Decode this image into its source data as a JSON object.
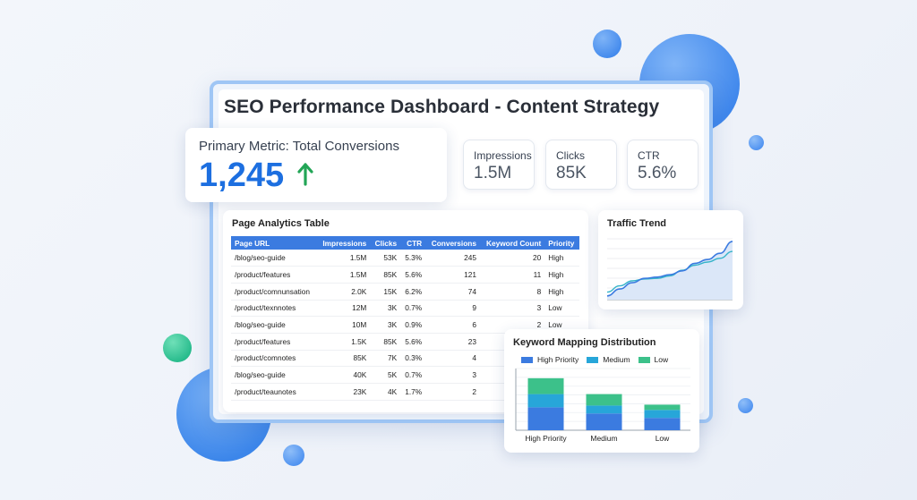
{
  "header": {
    "title": "SEO Performance Dashboard - Content Strategy"
  },
  "primary_metric": {
    "label": "Primary Metric: Total Conversions",
    "value": "1,245",
    "trend_icon": "arrow-up-icon",
    "trend_color": "#22a556"
  },
  "metrics": [
    {
      "label": "Impressions",
      "value": "1.5M"
    },
    {
      "label": "Clicks",
      "value": "85K"
    },
    {
      "label": "CTR",
      "value": "5.6%"
    }
  ],
  "page_table": {
    "title": "Page Analytics Table",
    "columns": [
      "Page URL",
      "Impressions",
      "Clicks",
      "CTR",
      "Conversions",
      "Keyword Count",
      "Priority"
    ],
    "rows": [
      [
        "/blog/seo-guide",
        "1.5M",
        "53K",
        "5.3%",
        "245",
        "20",
        "High"
      ],
      [
        "/product/features",
        "1.5M",
        "85K",
        "5.6%",
        "121",
        "11",
        "High"
      ],
      [
        "/product/comnunsation",
        "2.0K",
        "15K",
        "6.2%",
        "74",
        "8",
        "High"
      ],
      [
        "/product/texnnotes",
        "12M",
        "3K",
        "0.7%",
        "9",
        "3",
        "Low"
      ],
      [
        "/blog/seo-guide",
        "10M",
        "3K",
        "0.9%",
        "6",
        "2",
        "Low"
      ],
      [
        "/product/features",
        "1.5K",
        "85K",
        "5.6%",
        "23",
        "",
        ""
      ],
      [
        "/product/comnotes",
        "85K",
        "7K",
        "0.3%",
        "4",
        "",
        ""
      ],
      [
        "/blog/seo-guide",
        "40K",
        "5K",
        "0.7%",
        "3",
        "",
        ""
      ],
      [
        "/product/teaunotes",
        "23K",
        "4K",
        "1.7%",
        "2",
        "",
        ""
      ]
    ]
  },
  "traffic_trend": {
    "title": "Traffic Trend",
    "series_a": [
      0.06,
      0.17,
      0.27,
      0.34,
      0.36,
      0.4,
      0.46,
      0.58,
      0.64,
      0.74,
      0.93
    ],
    "series_b": [
      0.12,
      0.22,
      0.3,
      0.33,
      0.34,
      0.38,
      0.47,
      0.55,
      0.6,
      0.66,
      0.77
    ],
    "line_color_a": "#3b7be0",
    "line_color_b": "#34b3c9",
    "fill_color": "#dbe7f8"
  },
  "chart_data": {
    "type": "bar",
    "title": "Keyword Mapping Distribution",
    "categories": [
      "High Priority",
      "Medium",
      "Low"
    ],
    "legend_position": "top",
    "stacked": true,
    "series": [
      {
        "name": "High Priority",
        "color": "#3b7be0",
        "values": [
          26,
          19,
          14
        ]
      },
      {
        "name": "Medium",
        "color": "#27a6d9",
        "values": [
          15,
          9,
          9
        ]
      },
      {
        "name": "Low",
        "color": "#3cc18a",
        "values": [
          18,
          13,
          6
        ]
      }
    ],
    "ylim": [
      0,
      70
    ]
  }
}
